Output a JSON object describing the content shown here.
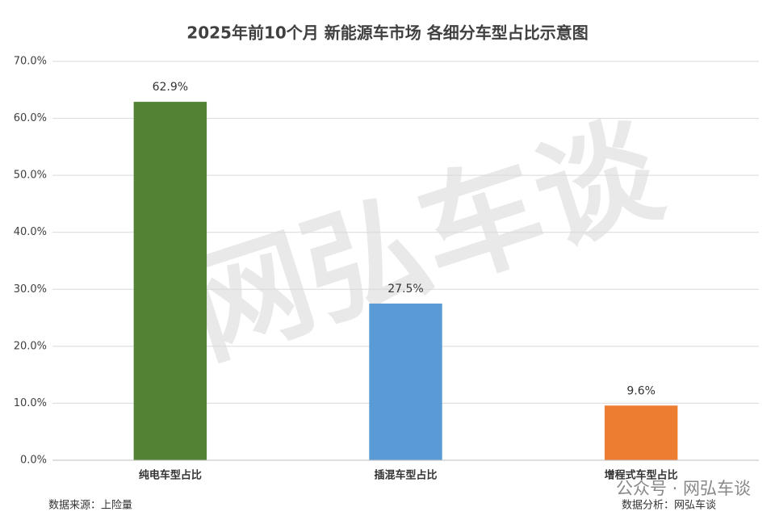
{
  "chart_data": {
    "type": "bar",
    "title": "2025年前10个月 新能源车市场 各细分车型占比示意图",
    "categories": [
      "纯电车型占比",
      "插混车型占比",
      "增程式车型占比"
    ],
    "values": [
      62.9,
      27.5,
      9.6
    ],
    "value_labels": [
      "62.9%",
      "27.5%",
      "9.6%"
    ],
    "colors": [
      "#548235",
      "#5b9bd5",
      "#ed7d31"
    ],
    "ylim": [
      0,
      70
    ],
    "yticks": [
      {
        "value": 0,
        "label": "0.0%"
      },
      {
        "value": 10,
        "label": "10.0%"
      },
      {
        "value": 20,
        "label": "20.0%"
      },
      {
        "value": 30,
        "label": "30.0%"
      },
      {
        "value": 40,
        "label": "40.0%"
      },
      {
        "value": 50,
        "label": "50.0%"
      },
      {
        "value": 60,
        "label": "60.0%"
      },
      {
        "value": 70,
        "label": "70.0%"
      }
    ],
    "grid": true,
    "source": "数据来源：上险量",
    "analysis": "数据分析：网弘车谈",
    "watermark": "网弘车谈",
    "wechat_tag": "公众号 · 网弘车谈"
  }
}
